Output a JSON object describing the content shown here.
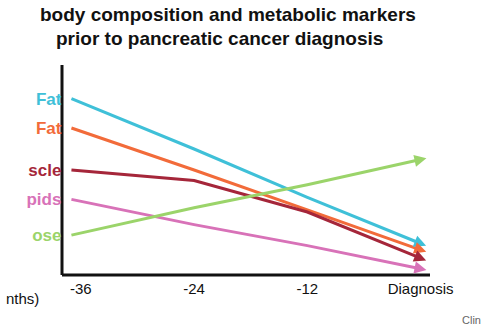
{
  "chart_data": {
    "type": "line",
    "title": "body composition and metabolic markers",
    "subtitle": "prior to pancreatic cancer diagnosis",
    "x_label": "nths)",
    "annotation": "Clin",
    "x": [
      -37,
      -24,
      -12,
      0
    ],
    "xlim": [
      -38,
      1
    ],
    "xticks": [
      -36,
      -24,
      -12,
      {
        "value": 0,
        "label": "Diagnosis"
      }
    ],
    "ylim": [
      0,
      100
    ],
    "tick_labels": "x",
    "grid": false,
    "marker": "arrow",
    "series": [
      {
        "name": "Fat",
        "color": "#3fc0d8",
        "values": [
          84,
          60,
          37,
          15
        ],
        "line_style": "solid"
      },
      {
        "name": "Fat",
        "color": "#f26b3a",
        "values": [
          70,
          50,
          31,
          12
        ],
        "line_style": "solid"
      },
      {
        "name": "scle",
        "color": "#a5263a",
        "values": [
          50,
          45,
          30,
          8
        ],
        "line_style": "solid"
      },
      {
        "name": "pids",
        "color": "#d872b8",
        "values": [
          36,
          24,
          14,
          3
        ],
        "line_style": "solid"
      },
      {
        "name": "ose",
        "color": "#9bd46a",
        "values": [
          19,
          32,
          43,
          55
        ],
        "line_style": "solid"
      }
    ]
  }
}
